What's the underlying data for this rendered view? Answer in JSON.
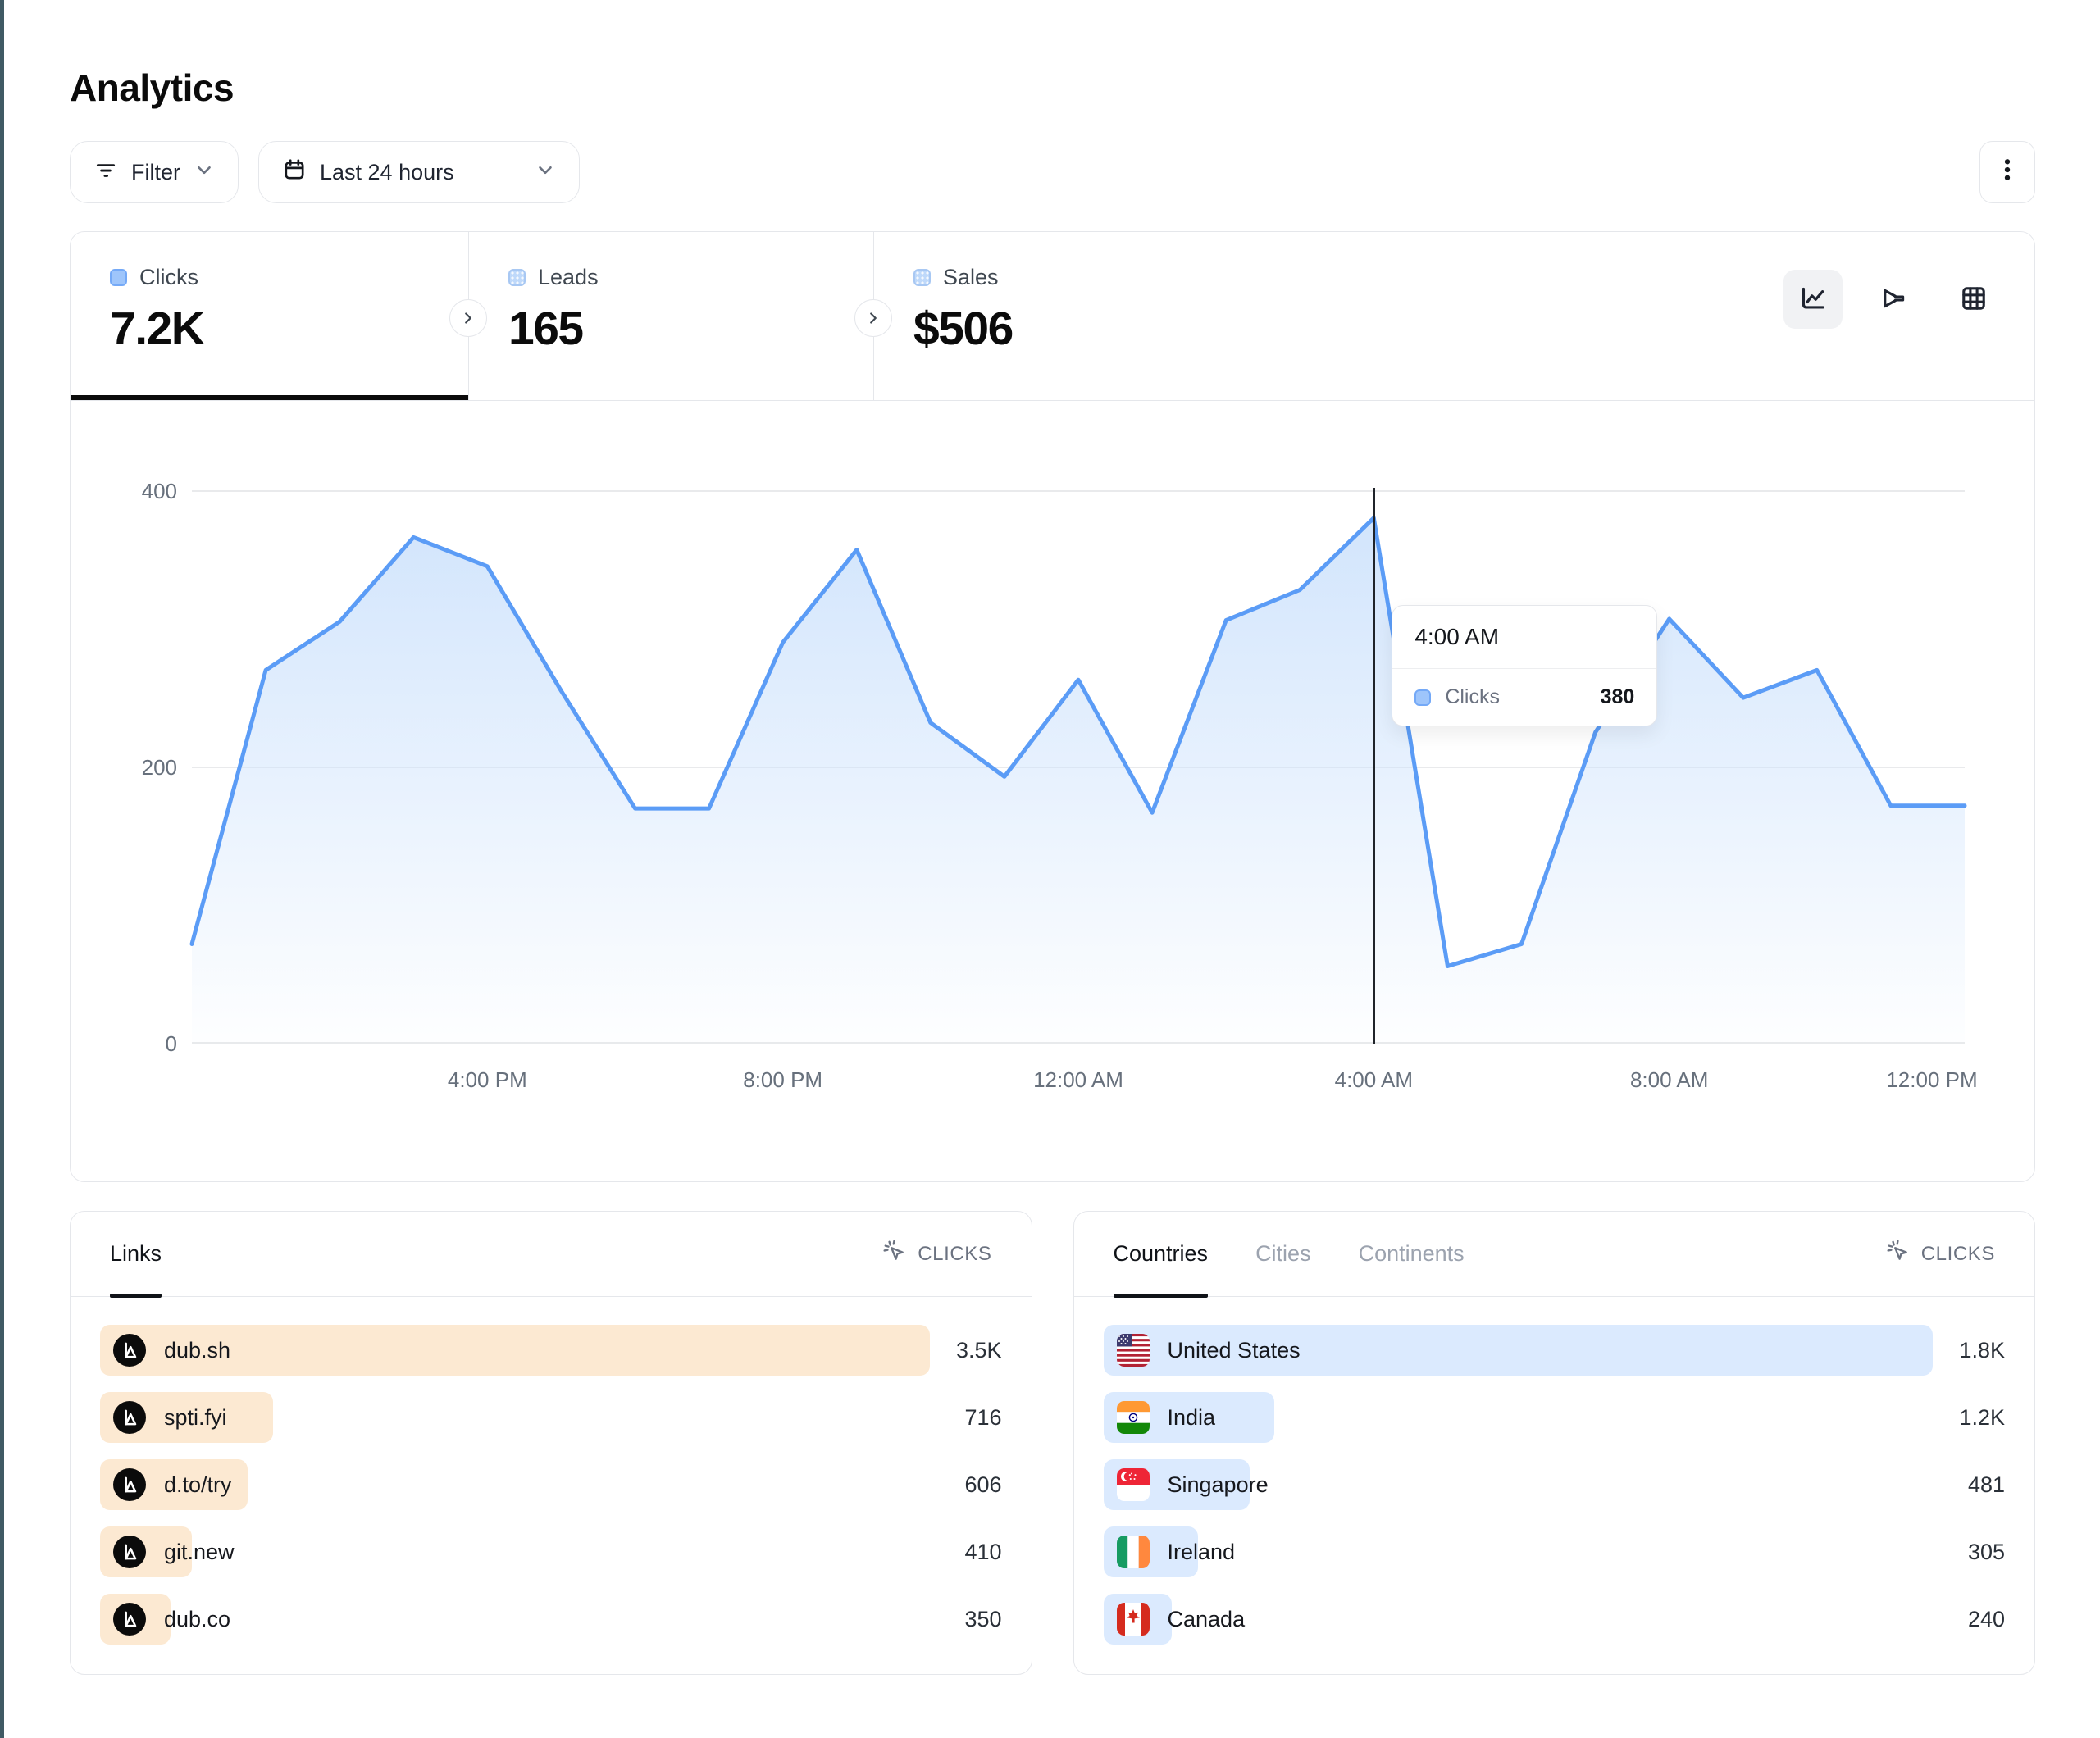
{
  "header": {
    "title": "Analytics"
  },
  "toolbar": {
    "filter_label": "Filter",
    "range_label": "Last 24 hours",
    "more_menu": "kebab-menu"
  },
  "stats": {
    "items": [
      {
        "label": "Clicks",
        "value": "7.2K",
        "active": true
      },
      {
        "label": "Leads",
        "value": "165",
        "active": false
      },
      {
        "label": "Sales",
        "value": "$506",
        "active": false
      }
    ]
  },
  "chart_toggles": [
    {
      "name": "line-chart-view",
      "active": true
    },
    {
      "name": "funnel-view",
      "active": false
    },
    {
      "name": "table-view",
      "active": false
    }
  ],
  "chart_data": {
    "type": "area",
    "title": "Clicks over last 24 hours",
    "categories": [
      "12:00 PM",
      "1:00 PM",
      "2:00 PM",
      "3:00 PM",
      "4:00 PM",
      "5:00 PM",
      "6:00 PM",
      "7:00 PM",
      "8:00 PM",
      "9:00 PM",
      "10:00 PM",
      "11:00 PM",
      "12:00 AM",
      "1:00 AM",
      "2:00 AM",
      "3:00 AM",
      "4:00 AM",
      "5:00 AM",
      "6:00 AM",
      "7:00 AM",
      "8:00 AM",
      "9:00 AM",
      "10:00 AM",
      "11:00 AM",
      "12:00 PM"
    ],
    "series": [
      {
        "name": "Clicks",
        "values": [
          72,
          270,
          305,
          366,
          345,
          255,
          170,
          170,
          290,
          357,
          232,
          193,
          263,
          167,
          306,
          328,
          380,
          56,
          72,
          225,
          307,
          250,
          270,
          172,
          172
        ]
      }
    ],
    "ylim": [
      0,
      400
    ],
    "y_tick_labels": [
      "400",
      "200",
      "0"
    ],
    "x_tick_labels": [
      "4:00 PM",
      "8:00 PM",
      "12:00 AM",
      "4:00 AM",
      "8:00 AM",
      "12:00 PM"
    ],
    "x_tick_indices": [
      4,
      8,
      12,
      16,
      20,
      24
    ],
    "grid": "horizontal",
    "legend_position": "none",
    "hover": {
      "index": 16,
      "category": "4:00 AM",
      "series": "Clicks",
      "value": "380"
    }
  },
  "tooltip": {
    "time": "4:00 AM",
    "series": "Clicks",
    "value": "380"
  },
  "links_card": {
    "tab": "Links",
    "metric": "CLICKS",
    "items": [
      {
        "label": "dub.sh",
        "value": "3.5K",
        "bar_pct": 92
      },
      {
        "label": "spti.fyi",
        "value": "716",
        "bar_pct": 19.2
      },
      {
        "label": "d.to/try",
        "value": "606",
        "bar_pct": 16.4
      },
      {
        "label": "git.new",
        "value": "410",
        "bar_pct": 10.2
      },
      {
        "label": "dub.co",
        "value": "350",
        "bar_pct": 7.8
      }
    ]
  },
  "countries_card": {
    "tabs": [
      "Countries",
      "Cities",
      "Continents"
    ],
    "active_tab": "Countries",
    "metric": "CLICKS",
    "items": [
      {
        "label": "United States",
        "value": "1.8K",
        "flag": "us",
        "bar_pct": 92
      },
      {
        "label": "India",
        "value": "1.2K",
        "flag": "in",
        "bar_pct": 19
      },
      {
        "label": "Singapore",
        "value": "481",
        "flag": "sg",
        "bar_pct": 16.2
      },
      {
        "label": "Ireland",
        "value": "305",
        "flag": "ie",
        "bar_pct": 10.5
      },
      {
        "label": "Canada",
        "value": "240",
        "flag": "ca",
        "bar_pct": 7.6
      }
    ]
  },
  "colors": {
    "line": "#5B9CF6",
    "area_top": "#CDE2FC",
    "links_bar": "#FCE9D2",
    "countries_bar": "#DBEAFE",
    "active_underline": "#0b0b0b",
    "crosshair": "#20242A"
  }
}
